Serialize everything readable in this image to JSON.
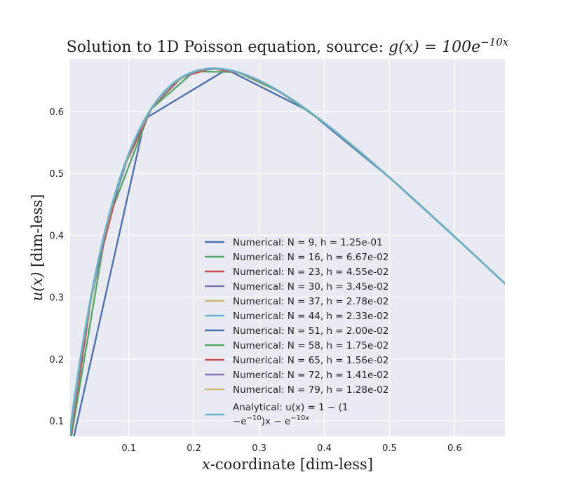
{
  "chart_data": {
    "type": "line",
    "title_prefix": "Solution to 1D Poisson equation, source: ",
    "title_math": "g(x) = 100e",
    "title_sup": "−10x",
    "xlabel_math": "x",
    "xlabel_rest": "-coordinate [dim-less]",
    "ylabel_math": "u(x)",
    "ylabel_rest": " [dim-less]",
    "xlim": [
      0.01,
      0.677
    ],
    "ylim": [
      0.075,
      0.685
    ],
    "xticks": [
      0.1,
      0.2,
      0.3,
      0.4,
      0.5,
      0.6
    ],
    "xtick_labels": [
      "0.1",
      "0.2",
      "0.3",
      "0.4",
      "0.5",
      "0.6"
    ],
    "yticks": [
      0.1,
      0.2,
      0.3,
      0.4,
      0.5,
      0.6
    ],
    "ytick_labels": [
      "0.1",
      "0.2",
      "0.3",
      "0.4",
      "0.5",
      "0.6"
    ],
    "grid": true,
    "legend_position": "bottom-center",
    "background": "#eaeaf2",
    "series": [
      {
        "name": "Numerical: N = 9, h = 1.25e-01",
        "color": "#4c72b0",
        "N": 9
      },
      {
        "name": "Numerical: N = 16, h = 6.67e-02",
        "color": "#55a868",
        "N": 16
      },
      {
        "name": "Numerical: N = 23, h = 4.55e-02",
        "color": "#c44e52",
        "N": 23
      },
      {
        "name": "Numerical: N = 30, h = 3.45e-02",
        "color": "#8172b2",
        "N": 30
      },
      {
        "name": "Numerical: N = 37, h = 2.78e-02",
        "color": "#ccb974",
        "N": 37
      },
      {
        "name": "Numerical: N = 44, h = 2.33e-02",
        "color": "#64b5cd",
        "N": 44
      },
      {
        "name": "Numerical: N = 51, h = 2.00e-02",
        "color": "#4c72b0",
        "N": 51
      },
      {
        "name": "Numerical: N = 58, h = 1.75e-02",
        "color": "#55a868",
        "N": 58
      },
      {
        "name": "Numerical: N = 65, h = 1.56e-02",
        "color": "#c44e52",
        "N": 65
      },
      {
        "name": "Numerical: N = 72, h = 1.41e-02",
        "color": "#8172b2",
        "N": 72
      },
      {
        "name": "Numerical: N = 79, h = 1.28e-02",
        "color": "#ccb974",
        "N": 79
      },
      {
        "name": "Analytical: u(x) = 1 − (1 −e^{−10})x − e^{−10x}",
        "color": "#64b5cd",
        "analytical": true,
        "legend_line1": "Analytical: u(x) = 1 − (1",
        "legend_line2_a": "−e",
        "legend_line2_sup1": "−10",
        "legend_line2_b": ")x − e",
        "legend_line2_sup2": "−10x"
      }
    ]
  }
}
